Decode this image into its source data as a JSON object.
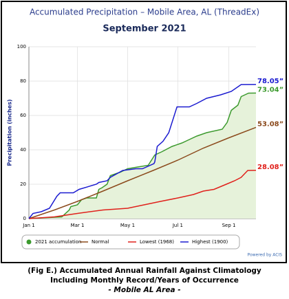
{
  "chart_data": {
    "type": "line",
    "title": "Accumulated Precipitation – Mobile Area, AL (ThreadEx)",
    "subtitle": "September 2021",
    "y_label": "Precipitation (inches)",
    "credit": "Powered by ACIS",
    "xlim": [
      0,
      276
    ],
    "xticks": [
      {
        "value": 0,
        "label": "Jan 1"
      },
      {
        "value": 59,
        "label": "Mar 1"
      },
      {
        "value": 120,
        "label": "May 1"
      },
      {
        "value": 181,
        "label": "Jul 1"
      },
      {
        "value": 243,
        "label": "Sep 1"
      }
    ],
    "ylim": [
      0,
      100
    ],
    "yticks": [
      0,
      20,
      40,
      60,
      80,
      100
    ],
    "grid": true,
    "series": [
      {
        "name": "2021 accumulation",
        "color": "#3c9a2e",
        "fill": "#e6f2da",
        "end_label": "73.04”",
        "x": [
          0,
          40,
          49,
          51,
          59,
          64,
          70,
          82,
          85,
          89,
          95,
          99,
          111,
          120,
          132,
          145,
          153,
          162,
          174,
          186,
          195,
          204,
          216,
          235,
          241,
          246,
          254,
          258,
          267,
          276
        ],
        "values": [
          0,
          1,
          5,
          7,
          8,
          11,
          12,
          12,
          17,
          18,
          20,
          25,
          27,
          29,
          30,
          31,
          37,
          39,
          42,
          44,
          46,
          48,
          50,
          52,
          56,
          63,
          66,
          71,
          73,
          73.04
        ]
      },
      {
        "name": "Normal",
        "color": "#8b4a1c",
        "end_label": "53.08”",
        "x": [
          0,
          31,
          59,
          90,
          120,
          151,
          181,
          212,
          243,
          276
        ],
        "values": [
          0,
          5,
          10,
          16,
          22,
          28,
          34,
          41,
          47,
          53.08
        ]
      },
      {
        "name": "Lowest (1968)",
        "color": "#e0201b",
        "end_label": "28.08”",
        "x": [
          0,
          31,
          59,
          90,
          120,
          140,
          160,
          181,
          200,
          212,
          225,
          240,
          250,
          258,
          262,
          266,
          276
        ],
        "values": [
          0,
          1,
          3,
          5,
          6,
          8,
          10,
          12,
          14,
          16,
          17,
          20,
          22,
          24,
          26,
          28,
          28.08
        ]
      },
      {
        "name": "Highest (1900)",
        "color": "#1a1ad0",
        "end_label": "78.05”",
        "x": [
          0,
          5,
          15,
          25,
          34,
          38,
          54,
          61,
          82,
          85,
          95,
          99,
          114,
          130,
          138,
          152,
          153,
          156,
          163,
          170,
          180,
          195,
          204,
          216,
          233,
          246,
          258,
          276
        ],
        "values": [
          0,
          3,
          4,
          6,
          13,
          15,
          15,
          17,
          20,
          21,
          22,
          24,
          28,
          29,
          29,
          32,
          33,
          42,
          45,
          50,
          65,
          65,
          67,
          70,
          72,
          74,
          78,
          78.05
        ]
      }
    ]
  },
  "caption": [
    "(Fig E.) Accumulated Annual Rainfall Against  Climatology",
    "Including Monthly Record/Years of Occurrence",
    "- Mobile AL Area -"
  ]
}
